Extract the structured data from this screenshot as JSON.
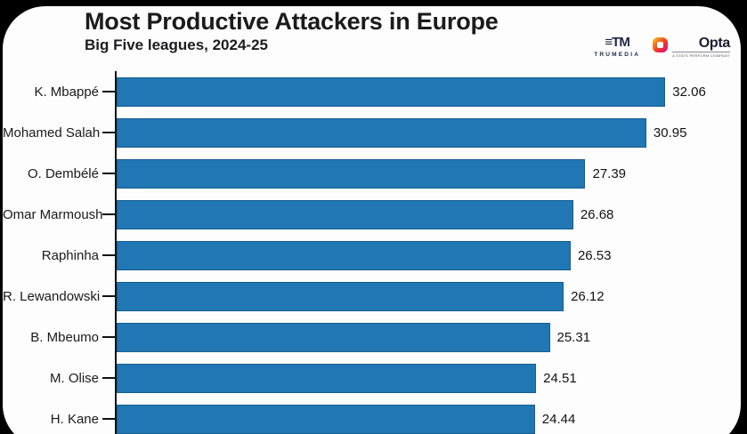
{
  "page": {
    "background_color": "#000000",
    "card_color": "#fdfdfd"
  },
  "branding": {
    "trumedia": {
      "mark": "≡TM",
      "label": "TRUMEDIA"
    },
    "opta": {
      "label": "Opta",
      "tagline": "A STATS PERFORM COMPANY"
    }
  },
  "chart_data": {
    "type": "bar",
    "orientation": "horizontal",
    "title": "Most Productive Attackers in Europe",
    "subtitle": "Big Five leagues, 2024-25",
    "categories": [
      "K. Mbappé",
      "Mohamed Salah",
      "O. Dembélé",
      "Omar Marmoush",
      "Raphinha",
      "R. Lewandowski",
      "B. Mbeumo",
      "M. Olise",
      "H. Kane"
    ],
    "values": [
      32.06,
      30.95,
      27.39,
      26.68,
      26.53,
      26.12,
      25.31,
      24.51,
      24.44
    ],
    "value_labels": [
      "32.06",
      "30.95",
      "27.39",
      "26.68",
      "26.53",
      "26.12",
      "25.31",
      "24.51",
      "24.44"
    ],
    "xlim": [
      0,
      36
    ],
    "bar_color": "#2077b4",
    "grid": false,
    "legend": false,
    "value_label_position": "right-of-bar"
  }
}
